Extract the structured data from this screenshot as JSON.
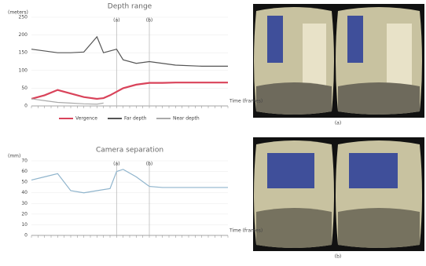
{
  "chart_data": [
    {
      "type": "line",
      "title": "Depth range",
      "y_label": "(meters)",
      "x_label": "Time (frames)",
      "x": [
        0,
        2,
        4,
        6,
        8,
        10,
        11,
        12,
        13,
        14,
        16,
        18,
        20,
        22,
        26,
        30
      ],
      "xlim": [
        0,
        30
      ],
      "ylim": [
        0,
        250
      ],
      "yticks": [
        0,
        50,
        100,
        150,
        200,
        250
      ],
      "series": [
        {
          "name": "Vergence",
          "color": "#d9435a",
          "values": [
            20,
            30,
            45,
            35,
            25,
            20,
            22,
            30,
            40,
            50,
            60,
            65,
            65,
            66,
            66,
            66
          ]
        },
        {
          "name": "Far depth",
          "color": "#555555",
          "values": [
            160,
            155,
            150,
            150,
            152,
            195,
            150,
            155,
            160,
            130,
            120,
            125,
            120,
            115,
            112,
            112
          ]
        },
        {
          "name": "Near depth",
          "color": "#aaaaaa",
          "values": [
            20,
            15,
            10,
            8,
            6,
            5,
            8,
            null,
            null,
            null,
            null,
            null,
            null,
            null,
            null,
            null
          ]
        }
      ],
      "annotations": [
        {
          "label": "(a)",
          "x": 13
        },
        {
          "label": "(b)",
          "x": 18
        }
      ]
    },
    {
      "type": "line",
      "title": "Camera separation",
      "y_label": "(mm)",
      "x_label": "Time (frames)",
      "x": [
        0,
        2,
        4,
        6,
        8,
        10,
        12,
        13,
        14,
        16,
        18,
        20,
        22,
        26,
        30
      ],
      "xlim": [
        0,
        30
      ],
      "ylim": [
        0,
        70
      ],
      "yticks": [
        0,
        10,
        20,
        30,
        40,
        50,
        60,
        70
      ],
      "series": [
        {
          "name": "Camera separation",
          "color": "#8fb4cc",
          "values": [
            52,
            55,
            58,
            42,
            40,
            42,
            44,
            60,
            62,
            55,
            46,
            45,
            45,
            45,
            45
          ]
        }
      ],
      "annotations": [
        {
          "label": "(a)",
          "x": 13
        },
        {
          "label": "(b)",
          "x": 18
        }
      ]
    }
  ],
  "image_captions": [
    "(a)",
    "(b)"
  ]
}
